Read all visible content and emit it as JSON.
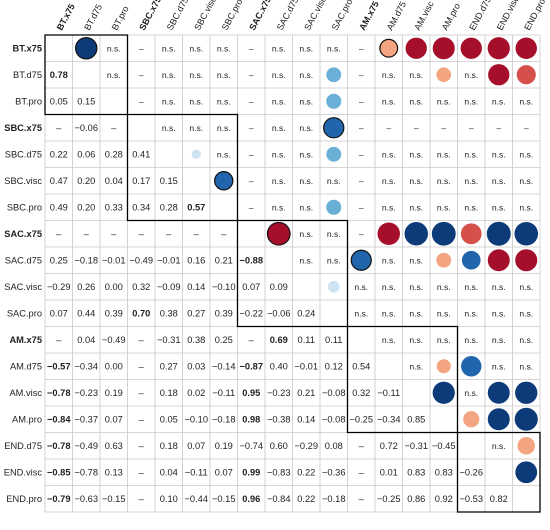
{
  "chart_data": {
    "type": "heatmap",
    "title": "",
    "variables": [
      "BT.x75",
      "BT.d75",
      "BT.pro",
      "SBC.x75",
      "SBC.d75",
      "SBC.visc",
      "SBC.pro",
      "SAC.x75",
      "SAC.d75",
      "SAC.visc",
      "SAC.pro",
      "AM.x75",
      "AM.d75",
      "AM.visc",
      "AM.pro",
      "END.d75",
      "END.visc",
      "END.pro"
    ],
    "bold_variables": [
      "BT.x75",
      "SBC.x75",
      "SAC.x75",
      "AM.x75"
    ],
    "lower_triangle": [
      [],
      [
        "0.78"
      ],
      [
        "0.05",
        "0.15"
      ],
      [
        "–",
        "-0.06",
        "–"
      ],
      [
        "0.22",
        "0.06",
        "0.28",
        "0.41"
      ],
      [
        "0.47",
        "0.20",
        "0.04",
        "0.17",
        "0.15"
      ],
      [
        "0.49",
        "0.20",
        "0.33",
        "0.34",
        "0.28",
        "0.57"
      ],
      [
        "–",
        "–",
        "–",
        "–",
        "–",
        "–",
        "–"
      ],
      [
        "0.25",
        "-0.18",
        "-0.01",
        "-0.49",
        "-0.01",
        "0.16",
        "0.21",
        "-0.88"
      ],
      [
        "-0.29",
        "0.26",
        "0.00",
        "0.32",
        "-0.09",
        "0.14",
        "-0.10",
        "0.07",
        "0.09"
      ],
      [
        "0.07",
        "0.44",
        "0.39",
        "0.70",
        "0.38",
        "0.27",
        "0.39",
        "-0.22",
        "-0.06",
        "0.24"
      ],
      [
        "–",
        "0.04",
        "-0.49",
        "–",
        "-0.31",
        "0.38",
        "0.25",
        "–",
        "0.69",
        "0.11",
        "0.11"
      ],
      [
        "-0.57",
        "-0.34",
        "0.00",
        "–",
        "0.27",
        "0.03",
        "-0.14",
        "-0.87",
        "0.40",
        "-0.01",
        "0.12",
        "0.54"
      ],
      [
        "-0.78",
        "-0.23",
        "0.19",
        "–",
        "0.18",
        "0.02",
        "-0.11",
        "0.95",
        "-0.23",
        "0.21",
        "-0.08",
        "0.32",
        "-0.11"
      ],
      [
        "-0.84",
        "-0.37",
        "0.07",
        "–",
        "0.05",
        "-0.10",
        "-0.18",
        "0.98",
        "-0.38",
        "0.14",
        "-0.08",
        "-0.25",
        "-0.34",
        "0.85"
      ],
      [
        "-0.78",
        "-0.49",
        "0.63",
        "–",
        "0.18",
        "0.07",
        "0.19",
        "-0.74",
        "0.60",
        "-0.29",
        "0.08",
        "–",
        "0.72",
        "-0.31",
        "-0.45"
      ],
      [
        "-0.85",
        "-0.78",
        "0.13",
        "–",
        "0.04",
        "-0.11",
        "0.07",
        "0.99",
        "-0.83",
        "0.22",
        "-0.36",
        "–",
        "0.01",
        "0.83",
        "0.83",
        "-0.26"
      ],
      [
        "-0.79",
        "-0.63",
        "-0.15",
        "–",
        "0.10",
        "-0.44",
        "-0.15",
        "0.96",
        "-0.84",
        "0.22",
        "-0.18",
        "–",
        "-0.25",
        "0.86",
        "0.92",
        "-0.53",
        "0.82"
      ]
    ],
    "bold_values": [
      [
        1,
        0
      ],
      [
        15,
        0
      ],
      [
        12,
        0
      ],
      [
        13,
        0
      ],
      [
        14,
        0
      ],
      [
        16,
        0
      ],
      [
        17,
        0
      ],
      [
        10,
        3
      ],
      [
        6,
        5
      ],
      [
        8,
        7
      ],
      [
        12,
        7
      ],
      [
        13,
        7
      ],
      [
        14,
        7
      ],
      [
        16,
        7
      ],
      [
        17,
        7
      ],
      [
        11,
        8
      ]
    ],
    "upper_triangle": [
      [
        null,
        "c",
        "n.s.",
        "–",
        "n.s.",
        "n.s.",
        "n.s.",
        "–",
        "n.s.",
        "n.s.",
        "n.s.",
        "–",
        "c",
        "c",
        "c",
        "c",
        "c",
        "c"
      ],
      [
        null,
        null,
        "n.s.",
        "–",
        "n.s.",
        "n.s.",
        "n.s.",
        "–",
        "n.s.",
        "n.s.",
        "c",
        "–",
        "n.s.",
        "n.s.",
        "c",
        "n.s.",
        "c",
        "c"
      ],
      [
        null,
        null,
        null,
        "–",
        "n.s.",
        "n.s.",
        "n.s.",
        "–",
        "n.s.",
        "n.s.",
        "c",
        "–",
        "n.s.",
        "n.s.",
        "n.s.",
        "n.s.",
        "n.s.",
        "n.s."
      ],
      [
        null,
        null,
        null,
        null,
        "n.s.",
        "n.s.",
        "n.s.",
        "–",
        "n.s.",
        "n.s.",
        "c",
        "–",
        "–",
        "–",
        "–",
        "–",
        "–",
        "–"
      ],
      [
        null,
        null,
        null,
        null,
        null,
        "c",
        "n.s.",
        "–",
        "n.s.",
        "n.s.",
        "c",
        "–",
        "n.s.",
        "n.s.",
        "n.s.",
        "n.s.",
        "n.s.",
        "n.s."
      ],
      [
        null,
        null,
        null,
        null,
        null,
        null,
        "c",
        "–",
        "n.s.",
        "n.s.",
        "n.s.",
        "–",
        "n.s.",
        "n.s.",
        "n.s.",
        "n.s.",
        "n.s.",
        "n.s."
      ],
      [
        null,
        null,
        null,
        null,
        null,
        null,
        null,
        "–",
        "n.s.",
        "n.s.",
        "n.s.",
        "–",
        "n.s.",
        "n.s.",
        "n.s.",
        "n.s.",
        "n.s.",
        "n.s."
      ],
      [
        null,
        null,
        null,
        null,
        null,
        null,
        null,
        null,
        "c",
        "n.s.",
        "n.s.",
        "–",
        "c",
        "c",
        "c",
        "c",
        "c",
        "c"
      ],
      [
        null,
        null,
        null,
        null,
        null,
        null,
        null,
        null,
        null,
        "n.s.",
        "n.s.",
        "c",
        "n.s.",
        "n.s.",
        "c",
        "c",
        "c",
        "c"
      ],
      [
        null,
        null,
        null,
        null,
        null,
        null,
        null,
        null,
        null,
        null,
        "c",
        "n.s.",
        "n.s.",
        "n.s.",
        "n.s.",
        "n.s.",
        "n.s.",
        "n.s."
      ],
      [
        null,
        null,
        null,
        null,
        null,
        null,
        null,
        null,
        null,
        null,
        null,
        "n.s.",
        "n.s.",
        "n.s.",
        "n.s.",
        "n.s.",
        "n.s.",
        "n.s."
      ],
      [
        null,
        null,
        null,
        null,
        null,
        null,
        null,
        null,
        null,
        null,
        null,
        null,
        "n.s.",
        "n.s.",
        "n.s.",
        "n.s.",
        "n.s.",
        "n.s."
      ],
      [
        null,
        null,
        null,
        null,
        null,
        null,
        null,
        null,
        null,
        null,
        null,
        null,
        null,
        "n.s.",
        "c",
        "c",
        "n.s.",
        "n.s."
      ],
      [
        null,
        null,
        null,
        null,
        null,
        null,
        null,
        null,
        null,
        null,
        null,
        null,
        null,
        null,
        "c",
        "n.s.",
        "c",
        "c"
      ],
      [
        null,
        null,
        null,
        null,
        null,
        null,
        null,
        null,
        null,
        null,
        null,
        null,
        null,
        null,
        null,
        "c",
        "c",
        "c"
      ],
      [
        null,
        null,
        null,
        null,
        null,
        null,
        null,
        null,
        null,
        null,
        null,
        null,
        null,
        null,
        null,
        null,
        "n.s.",
        "c"
      ],
      [
        null,
        null,
        null,
        null,
        null,
        null,
        null,
        null,
        null,
        null,
        null,
        null,
        null,
        null,
        null,
        null,
        null,
        "c"
      ],
      [
        null,
        null,
        null,
        null,
        null,
        null,
        null,
        null,
        null,
        null,
        null,
        null,
        null,
        null,
        null,
        null,
        null,
        null
      ]
    ],
    "circles": [
      {
        "row": 0,
        "col": 1,
        "value": -0.78,
        "emph": true
      },
      {
        "row": 0,
        "col": 12,
        "value": 0.54,
        "emph": true
      },
      {
        "row": 0,
        "col": 13,
        "value": 0.78
      },
      {
        "row": 0,
        "col": 14,
        "value": 0.84
      },
      {
        "row": 0,
        "col": 15,
        "value": 0.78
      },
      {
        "row": 0,
        "col": 16,
        "value": 0.85
      },
      {
        "row": 0,
        "col": 17,
        "value": 0.79
      },
      {
        "row": 1,
        "col": 10,
        "value": -0.38
      },
      {
        "row": 1,
        "col": 14,
        "value": 0.37
      },
      {
        "row": 1,
        "col": 16,
        "value": 0.78
      },
      {
        "row": 1,
        "col": 17,
        "value": 0.63
      },
      {
        "row": 2,
        "col": 10,
        "value": -0.39
      },
      {
        "row": 3,
        "col": 10,
        "value": -0.7,
        "emph": true
      },
      {
        "row": 4,
        "col": 10,
        "value": -0.38
      },
      {
        "row": 4,
        "col": 5,
        "value": -0.15
      },
      {
        "row": 5,
        "col": 6,
        "value": -0.57,
        "emph": true
      },
      {
        "row": 6,
        "col": 10,
        "value": -0.39
      },
      {
        "row": 7,
        "col": 8,
        "value": 0.88,
        "emph": true
      },
      {
        "row": 7,
        "col": 12,
        "value": 0.87
      },
      {
        "row": 7,
        "col": 13,
        "value": -0.95
      },
      {
        "row": 7,
        "col": 14,
        "value": -0.98
      },
      {
        "row": 7,
        "col": 15,
        "value": 0.74
      },
      {
        "row": 7,
        "col": 16,
        "value": -0.99
      },
      {
        "row": 7,
        "col": 17,
        "value": -0.96
      },
      {
        "row": 8,
        "col": 11,
        "value": -0.69,
        "emph": true
      },
      {
        "row": 8,
        "col": 14,
        "value": 0.38
      },
      {
        "row": 8,
        "col": 15,
        "value": -0.6
      },
      {
        "row": 8,
        "col": 16,
        "value": 0.83
      },
      {
        "row": 8,
        "col": 17,
        "value": 0.84
      },
      {
        "row": 9,
        "col": 10,
        "value": -0.24
      },
      {
        "row": 12,
        "col": 14,
        "value": 0.34
      },
      {
        "row": 12,
        "col": 15,
        "value": -0.72
      },
      {
        "row": 13,
        "col": 14,
        "value": -0.85
      },
      {
        "row": 13,
        "col": 16,
        "value": -0.83
      },
      {
        "row": 13,
        "col": 17,
        "value": -0.86
      },
      {
        "row": 14,
        "col": 15,
        "value": 0.45
      },
      {
        "row": 14,
        "col": 16,
        "value": -0.83
      },
      {
        "row": 14,
        "col": 17,
        "value": -0.92
      },
      {
        "row": 15,
        "col": 17,
        "value": 0.53
      },
      {
        "row": 16,
        "col": 17,
        "value": -0.82
      }
    ],
    "blocks": [
      [
        0,
        2
      ],
      [
        3,
        6
      ],
      [
        7,
        10
      ],
      [
        11,
        14
      ],
      [
        15,
        17
      ]
    ],
    "colors": {
      "strong_pos": "#a50f2b",
      "mid_pos": "#d6504b",
      "weak_pos": "#f3a582",
      "strong_neg": "#0d3a78",
      "mid_neg": "#2166ac",
      "weak_neg": "#6aafd6",
      "faint_neg": "#cfe4f2",
      "grid": "#c8c8c8",
      "block": "#000000"
    }
  }
}
